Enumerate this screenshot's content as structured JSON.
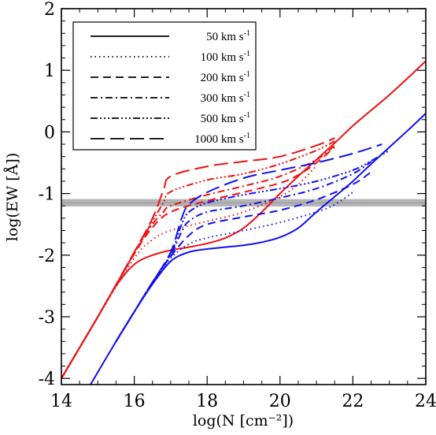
{
  "chart_data": {
    "type": "line",
    "xlabel": "log(N [cm⁻²])",
    "ylabel": "log(EW [Å])",
    "xlim": [
      14,
      24
    ],
    "ylim": [
      -4.1,
      2
    ],
    "xticks": [
      "14",
      "16",
      "18",
      "20",
      "22",
      "24"
    ],
    "yticks": [
      "-4",
      "-3",
      "-2",
      "-1",
      "0",
      "1",
      "2"
    ],
    "grid": false,
    "legend_placement": "top-left",
    "legend": [
      {
        "label": "50 km s",
        "dash": "solid"
      },
      {
        "label": "100 km s",
        "dash": "dotted"
      },
      {
        "label": "200 km s",
        "dash": "dashed"
      },
      {
        "label": "300 km s",
        "dash": "dashdot"
      },
      {
        "label": "500 km s",
        "dash": "dashdotdotdot"
      },
      {
        "label": "1000 km s",
        "dash": "longdash"
      }
    ],
    "legend_unit_exponent": "-1",
    "threshold_band": {
      "y": -1.15,
      "halfwidth": 0.06,
      "color": "#b4b4b4"
    },
    "groups": [
      {
        "color": "#ee1111",
        "series": [
          {
            "name": "50 km s",
            "dash": "solid",
            "x": [
              14,
              14.5,
              15,
              15.5,
              16,
              16.5,
              17,
              17.5,
              18,
              18.5,
              19,
              19.5,
              20,
              20.5,
              21,
              21.5,
              22,
              22.5,
              23,
              23.5,
              24
            ],
            "y": [
              -4.0,
              -3.5,
              -3.0,
              -2.5,
              -2.15,
              -2.0,
              -1.92,
              -1.87,
              -1.81,
              -1.72,
              -1.56,
              -1.3,
              -1.0,
              -0.72,
              -0.45,
              -0.18,
              0.1,
              0.35,
              0.6,
              0.87,
              1.15
            ]
          },
          {
            "name": "100 km s",
            "dash": "dotted",
            "x": [
              14,
              15,
              16,
              16.5,
              17,
              18,
              19,
              20,
              20.5,
              21
            ],
            "y": [
              -4.0,
              -3.0,
              -2.05,
              -1.75,
              -1.6,
              -1.45,
              -1.3,
              -1.05,
              -0.85,
              -0.55
            ]
          },
          {
            "name": "200 km s",
            "dash": "dashed",
            "x": [
              14,
              15,
              16,
              16.5,
              17,
              18,
              19,
              20,
              20.5,
              21,
              21.5
            ],
            "y": [
              -4.0,
              -3.0,
              -1.98,
              -1.55,
              -1.3,
              -1.12,
              -0.98,
              -0.83,
              -0.7,
              -0.5,
              -0.25
            ]
          },
          {
            "name": "300 km s",
            "dash": "dashdot",
            "x": [
              14,
              15,
              16,
              16.5,
              16.8,
              17,
              18,
              19,
              20,
              21,
              21.5
            ],
            "y": [
              -4.0,
              -3.0,
              -1.97,
              -1.5,
              -1.3,
              -1.2,
              -1.02,
              -0.88,
              -0.72,
              -0.45,
              -0.22
            ]
          },
          {
            "name": "500 km s",
            "dash": "dashdotdotdot",
            "x": [
              14,
              15,
              16,
              16.5,
              16.8,
              17,
              18,
              19,
              20,
              21,
              21.5
            ],
            "y": [
              -4.0,
              -3.0,
              -1.96,
              -1.45,
              -1.15,
              -0.97,
              -0.78,
              -0.68,
              -0.52,
              -0.3,
              -0.15
            ]
          },
          {
            "name": "1000 km s",
            "dash": "longdash",
            "x": [
              14,
              15,
              16,
              16.5,
              16.8,
              17,
              18,
              19,
              20,
              21,
              21.5
            ],
            "y": [
              -4.0,
              -3.0,
              -1.95,
              -1.4,
              -0.95,
              -0.72,
              -0.56,
              -0.48,
              -0.4,
              -0.22,
              -0.1
            ]
          }
        ]
      },
      {
        "color": "#1111ee",
        "series": [
          {
            "name": "50 km s",
            "dash": "solid",
            "x": [
              14.8,
              15.5,
              16,
              16.5,
              17,
              17.5,
              18,
              18.5,
              19,
              19.5,
              20,
              20.5,
              21,
              21.5,
              22,
              22.5,
              23,
              23.5,
              24
            ],
            "y": [
              -4.1,
              -3.4,
              -2.92,
              -2.47,
              -2.1,
              -1.95,
              -1.9,
              -1.87,
              -1.84,
              -1.79,
              -1.71,
              -1.56,
              -1.3,
              -1.05,
              -0.8,
              -0.52,
              -0.25,
              0.02,
              0.3
            ]
          },
          {
            "name": "100 km s",
            "dash": "dotted",
            "x": [
              15.5,
              16,
              16.5,
              17,
              17.5,
              18,
              19,
              20,
              21,
              21.5,
              22
            ],
            "y": [
              -3.4,
              -2.92,
              -2.45,
              -2.05,
              -1.82,
              -1.72,
              -1.6,
              -1.47,
              -1.3,
              -1.18,
              -0.98
            ]
          },
          {
            "name": "200 km s",
            "dash": "dashed",
            "x": [
              15.5,
              16,
              16.5,
              17,
              17.5,
              18,
              19,
              20,
              21,
              22,
              22.5
            ],
            "y": [
              -3.4,
              -2.92,
              -2.44,
              -2.02,
              -1.68,
              -1.5,
              -1.38,
              -1.27,
              -1.1,
              -0.85,
              -0.65
            ]
          },
          {
            "name": "300 km s",
            "dash": "dashdot",
            "x": [
              15.5,
              16,
              16.5,
              17,
              17.3,
              17.5,
              18,
              19,
              20,
              21,
              22,
              22.5
            ],
            "y": [
              -3.4,
              -2.92,
              -2.44,
              -2.0,
              -1.62,
              -1.45,
              -1.3,
              -1.2,
              -1.07,
              -0.92,
              -0.68,
              -0.48
            ]
          },
          {
            "name": "500 km s",
            "dash": "dashdotdotdot",
            "x": [
              15.5,
              16,
              16.5,
              17,
              17.3,
              17.5,
              18,
              19,
              20,
              21,
              22,
              22.5,
              23
            ],
            "y": [
              -3.4,
              -2.92,
              -2.44,
              -1.98,
              -1.5,
              -1.3,
              -1.15,
              -1.02,
              -0.92,
              -0.8,
              -0.62,
              -0.47,
              -0.3
            ]
          },
          {
            "name": "1000 km s",
            "dash": "longdash",
            "x": [
              15.5,
              16,
              16.5,
              17,
              17.3,
              17.5,
              18,
              19,
              20,
              21,
              22,
              22.8
            ],
            "y": [
              -3.4,
              -2.92,
              -2.44,
              -1.95,
              -1.4,
              -1.18,
              -0.98,
              -0.75,
              -0.62,
              -0.5,
              -0.35,
              -0.2
            ]
          }
        ]
      }
    ]
  }
}
